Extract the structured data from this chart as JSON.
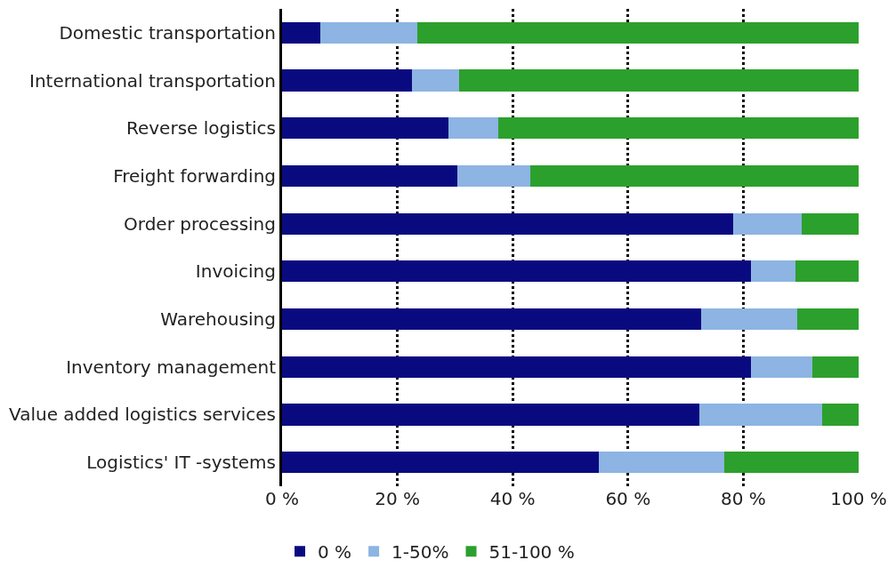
{
  "chart_data": {
    "type": "bar",
    "orientation": "horizontal",
    "stacked": true,
    "categories": [
      "Domestic transportation",
      "International transportation",
      "Reverse logistics",
      "Freight forwarding",
      "Order processing",
      "Invoicing",
      "Warehousing",
      "Inventory management",
      "Value added logistics services",
      "Logistics' IT -systems"
    ],
    "series": [
      {
        "name": "0 %",
        "color": "#0a0a80",
        "values": [
          6.6,
          22.6,
          28.8,
          30.4,
          78.3,
          81.4,
          72.7,
          81.3,
          72.4,
          55.0
        ]
      },
      {
        "name": "1-50%",
        "color": "#8db4e2",
        "values": [
          16.8,
          8.1,
          8.7,
          12.7,
          11.8,
          7.7,
          16.7,
          10.7,
          21.2,
          21.7
        ]
      },
      {
        "name": "51-100 %",
        "color": "#2ca02c",
        "values": [
          76.6,
          69.3,
          62.5,
          56.9,
          9.9,
          10.9,
          10.6,
          8.0,
          6.4,
          23.3
        ]
      }
    ],
    "xlim": [
      0,
      100
    ],
    "xticks": [
      {
        "value": 0,
        "label": "0 %"
      },
      {
        "value": 20,
        "label": "20 %"
      },
      {
        "value": 40,
        "label": "40 %"
      },
      {
        "value": 60,
        "label": "60 %"
      },
      {
        "value": 80,
        "label": "80 %"
      },
      {
        "value": 100,
        "label": "100 %"
      }
    ],
    "grid": "x",
    "legend": "bottom"
  }
}
